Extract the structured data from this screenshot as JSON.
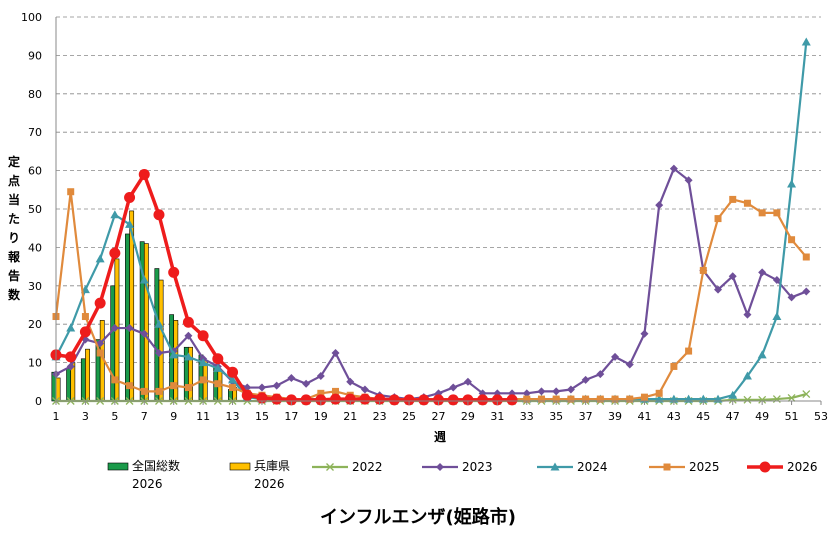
{
  "chart_data": {
    "type": "bar+line",
    "title": "インフルエンザ(姫路市)",
    "xlabel": "週",
    "ylabel": "定点当たり報告数",
    "ylim": [
      0,
      100
    ],
    "yticks": [
      0,
      10,
      20,
      30,
      40,
      50,
      60,
      70,
      80,
      90,
      100
    ],
    "xlim": [
      1,
      53
    ],
    "xticks": [
      1,
      3,
      5,
      7,
      9,
      11,
      13,
      15,
      17,
      19,
      21,
      23,
      25,
      27,
      29,
      31,
      33,
      35,
      37,
      39,
      41,
      43,
      45,
      47,
      49,
      51,
      53
    ],
    "grid": "horizontal dashed",
    "legend_position": "bottom",
    "bar_series": [
      {
        "name": "全国総数",
        "name2": "2026",
        "color": "#1a9a4a",
        "weeks": [
          1,
          2,
          3,
          4,
          5,
          6,
          7,
          8,
          9,
          10,
          11,
          12,
          13
        ],
        "values": [
          7.5,
          8.5,
          11,
          16,
          30,
          43.5,
          41.5,
          34.5,
          22.5,
          14,
          12,
          9.5,
          3
        ]
      },
      {
        "name": "兵庫県",
        "name2": "2026",
        "color": "#ffc000",
        "weeks": [
          1,
          2,
          3,
          4,
          5,
          6,
          7,
          8,
          9,
          10,
          11,
          12,
          13
        ],
        "values": [
          6,
          10,
          13.5,
          21,
          37,
          49.5,
          41,
          31.5,
          21,
          14,
          10.5,
          8,
          3.5
        ]
      }
    ],
    "series": [
      {
        "name": "2022",
        "color": "#8db35a",
        "marker": "x",
        "x": [
          1,
          2,
          3,
          4,
          5,
          6,
          7,
          8,
          9,
          10,
          11,
          12,
          13,
          14,
          15,
          16,
          17,
          18,
          19,
          20,
          21,
          22,
          23,
          24,
          25,
          26,
          27,
          28,
          29,
          30,
          31,
          32,
          33,
          34,
          35,
          36,
          37,
          38,
          39,
          40,
          41,
          42,
          43,
          44,
          45,
          46,
          47,
          48,
          49,
          50,
          51,
          52
        ],
        "values": [
          0,
          0,
          0,
          0,
          0,
          0,
          0,
          0,
          0,
          0,
          0,
          0,
          0,
          0,
          0,
          0,
          0,
          0,
          0,
          0,
          0,
          0,
          0,
          0,
          0,
          0,
          0,
          0,
          0,
          0,
          0,
          0,
          0,
          0,
          0,
          0,
          0,
          0,
          0,
          0,
          0,
          0,
          0,
          0,
          0,
          0,
          0.3,
          0.3,
          0.3,
          0.5,
          0.8,
          1.8
        ]
      },
      {
        "name": "2023",
        "color": "#6f4f99",
        "marker": "diamond",
        "x": [
          1,
          2,
          3,
          4,
          5,
          6,
          7,
          8,
          9,
          10,
          11,
          12,
          13,
          14,
          15,
          16,
          17,
          18,
          19,
          20,
          21,
          22,
          23,
          24,
          25,
          26,
          27,
          28,
          29,
          30,
          31,
          32,
          33,
          34,
          35,
          36,
          37,
          38,
          39,
          40,
          41,
          42,
          43,
          44,
          45,
          46,
          47,
          48,
          49,
          50,
          51,
          52
        ],
        "values": [
          7,
          9,
          16,
          15,
          19,
          19,
          17.5,
          12.5,
          13,
          17,
          11,
          9,
          5,
          3.5,
          3.5,
          4,
          6,
          4.5,
          6.5,
          12.5,
          5,
          3,
          1.5,
          1,
          0.5,
          1,
          2,
          3.5,
          5,
          2,
          2,
          2,
          2,
          2.5,
          2.5,
          3,
          5.5,
          7,
          11.5,
          9.5,
          17.5,
          51,
          60.5,
          57.5,
          34,
          29,
          32.5,
          22.5,
          33.5,
          31.5,
          27,
          28.5
        ]
      },
      {
        "name": "2024",
        "color": "#3f9aa8",
        "marker": "triangle",
        "x": [
          1,
          2,
          3,
          4,
          5,
          6,
          7,
          8,
          9,
          10,
          11,
          12,
          13,
          14,
          15,
          16,
          17,
          18,
          19,
          20,
          21,
          22,
          23,
          24,
          25,
          26,
          27,
          28,
          29,
          30,
          31,
          32,
          33,
          34,
          35,
          36,
          37,
          38,
          39,
          40,
          41,
          42,
          43,
          44,
          45,
          46,
          47,
          48,
          49,
          50,
          51,
          52
        ],
        "values": [
          11.5,
          19,
          29,
          37,
          48.5,
          46,
          31.5,
          20,
          12,
          11.5,
          10,
          8.5,
          5.5,
          1,
          0.5,
          0.5,
          0.5,
          0.5,
          0.5,
          0.5,
          0.5,
          0.5,
          0.5,
          0.5,
          0.5,
          0.5,
          0.5,
          0.5,
          0.5,
          0.5,
          0.5,
          0.5,
          0.5,
          0.5,
          0.5,
          0.5,
          0.5,
          0.5,
          0.5,
          0.5,
          0.5,
          0.5,
          0.5,
          0.5,
          0.5,
          0.5,
          1.5,
          6.5,
          12,
          22,
          56.5,
          93.5
        ]
      },
      {
        "name": "2025",
        "color": "#e08a3c",
        "marker": "square",
        "x": [
          1,
          2,
          3,
          4,
          5,
          6,
          7,
          8,
          9,
          10,
          11,
          12,
          13,
          14,
          15,
          16,
          17,
          18,
          19,
          20,
          21,
          22,
          23,
          24,
          25,
          26,
          27,
          28,
          29,
          30,
          31,
          32,
          33,
          34,
          35,
          36,
          37,
          38,
          39,
          40,
          41,
          42,
          43,
          44,
          45,
          46,
          47,
          48,
          49,
          50,
          51,
          52
        ],
        "values": [
          22,
          54.5,
          22,
          12.5,
          5.5,
          4,
          2.5,
          2.5,
          4,
          3.5,
          5.5,
          4.5,
          3.5,
          2,
          1.5,
          1,
          0.5,
          0.5,
          2,
          2.5,
          1.5,
          1,
          0.5,
          0.5,
          0.5,
          0.5,
          0.5,
          0.5,
          0.5,
          0.5,
          0.5,
          0.5,
          0.5,
          0.5,
          0.5,
          0.5,
          0.5,
          0.5,
          0.5,
          0.5,
          1,
          2,
          9,
          13,
          34,
          47.5,
          52.5,
          51.5,
          49,
          49,
          42,
          37.5
        ]
      },
      {
        "name": "2026",
        "color": "#ee1c1c",
        "marker": "circle",
        "x": [
          1,
          2,
          3,
          4,
          5,
          6,
          7,
          8,
          9,
          10,
          11,
          12,
          13,
          14,
          15,
          16,
          17,
          18,
          19,
          20,
          21,
          22,
          23,
          24,
          25,
          26,
          27,
          28,
          29,
          30,
          31,
          32
        ],
        "values": [
          12,
          11.5,
          18,
          25.5,
          38.5,
          53,
          59,
          48.5,
          33.5,
          20.5,
          17,
          11,
          7.5,
          1.5,
          0.8,
          0.5,
          0.3,
          0.3,
          0.3,
          0.5,
          0.5,
          0.5,
          0.5,
          0.3,
          0.3,
          0.3,
          0.3,
          0.3,
          0.3,
          0.3,
          0.3,
          0.3
        ]
      }
    ]
  }
}
